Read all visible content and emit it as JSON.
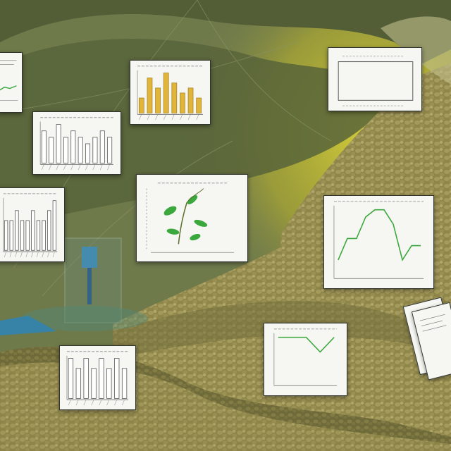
{
  "scene": {
    "description_tags": [
      "painted-landscape",
      "floating-chart-cards"
    ],
    "colors": {
      "sky_olive": "#6f7a4b",
      "hill_dark": "#4f5a35",
      "rock_tan": "#a09458",
      "rock_shadow": "#6e6a39",
      "glow_yellow": "#d6cf32",
      "card_paper": "#f6f6f2",
      "bar_yellow": "#e0b53a",
      "line_green": "#3aa83c"
    }
  },
  "cards": [
    {
      "id": "card-top-left-partial",
      "kind": "line-snippet"
    },
    {
      "id": "card-yellow-bars",
      "kind": "bar-chart",
      "values": [
        3,
        7,
        5,
        8,
        6,
        4,
        5,
        3
      ]
    },
    {
      "id": "card-blank-frame",
      "kind": "empty-plot"
    },
    {
      "id": "card-grey-bars",
      "kind": "bar-outline-chart",
      "values": [
        5,
        4,
        6,
        4,
        5,
        4,
        3,
        4,
        5,
        4
      ]
    },
    {
      "id": "card-plant",
      "kind": "plant-illustration"
    },
    {
      "id": "card-line-green",
      "kind": "line-chart",
      "values": [
        2,
        5,
        5,
        8,
        9,
        9,
        7,
        2,
        4,
        4
      ]
    },
    {
      "id": "card-left-bars",
      "kind": "bar-outline-chart",
      "values": [
        3,
        3,
        4,
        3,
        3,
        4,
        3,
        3,
        4,
        5
      ]
    },
    {
      "id": "card-bottom-bars",
      "kind": "bar-outline-chart",
      "values": [
        4,
        3,
        4,
        3,
        4,
        3,
        4,
        3
      ]
    },
    {
      "id": "card-small-line",
      "kind": "line-chart",
      "values": [
        3,
        3,
        3,
        2,
        3
      ]
    },
    {
      "id": "card-right-stack",
      "kind": "stacked-papers"
    }
  ]
}
